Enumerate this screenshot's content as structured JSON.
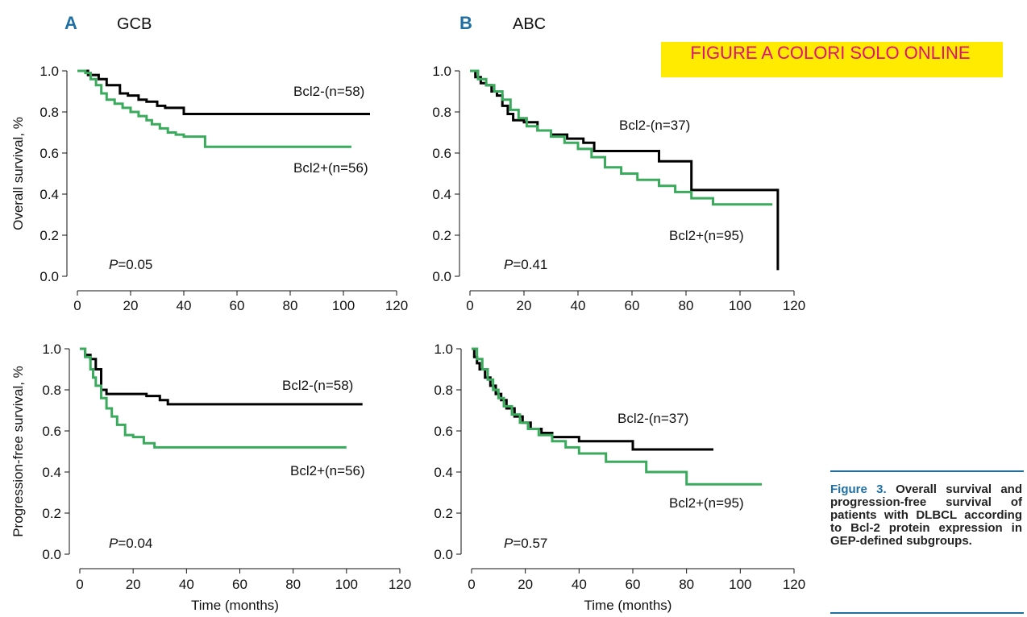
{
  "figure": {
    "label_a": "A",
    "label_b": "B",
    "group_a": "GCB",
    "group_b": "ABC",
    "banner": "FIGURE A COLORI SOLO ONLINE",
    "caption_lead": "Figure 3.",
    "caption_body": "Overall survival and progression-free survival of patients with DLBCL according to Bcl-2 protein expression in GEP-defined subgroups.",
    "colors": {
      "bcl2_neg": "#000000",
      "bcl2_pos": "#3aaa5c",
      "accent": "#1f6fa3",
      "banner_bg": "#ffeb00",
      "banner_text": "#e0117a"
    }
  },
  "chart_data": [
    {
      "type": "line",
      "panel": "A-top",
      "ylabel": "Overall survival, %",
      "xlabel": "",
      "xlim": [
        0,
        120
      ],
      "ylim": [
        0,
        1
      ],
      "xticks": [
        0,
        20,
        40,
        60,
        80,
        100,
        120
      ],
      "yticks": [
        0.0,
        0.2,
        0.4,
        0.6,
        0.8,
        1.0
      ],
      "grid": false,
      "pvalue_prefix": "P",
      "pvalue_rest": "=0.05",
      "series": [
        {
          "name": "Bcl2-(n=58)",
          "color": "#000000",
          "x": [
            0,
            4,
            8,
            11,
            16,
            19,
            23,
            26,
            30,
            33,
            40,
            110
          ],
          "y": [
            1.0,
            0.98,
            0.96,
            0.93,
            0.89,
            0.88,
            0.86,
            0.85,
            0.83,
            0.82,
            0.79,
            0.79
          ]
        },
        {
          "name": "Bcl2+(n=56)",
          "color": "#3aaa5c",
          "x": [
            0,
            3,
            5,
            7,
            9,
            11,
            14,
            17,
            20,
            23,
            26,
            28,
            31,
            34,
            37,
            40,
            48,
            103
          ],
          "y": [
            1.0,
            0.99,
            0.96,
            0.93,
            0.89,
            0.86,
            0.84,
            0.82,
            0.8,
            0.78,
            0.76,
            0.74,
            0.72,
            0.7,
            0.69,
            0.68,
            0.63,
            0.63
          ]
        }
      ]
    },
    {
      "type": "line",
      "panel": "B-top",
      "ylabel": "",
      "xlabel": "",
      "xlim": [
        0,
        120
      ],
      "ylim": [
        0,
        1
      ],
      "xticks": [
        0,
        20,
        40,
        60,
        80,
        100,
        120
      ],
      "yticks": [
        0.0,
        0.2,
        0.4,
        0.6,
        0.8,
        1.0
      ],
      "grid": false,
      "pvalue_prefix": "P",
      "pvalue_rest": "=0.41",
      "series": [
        {
          "name": "Bcl2-(n=37)",
          "color": "#000000",
          "x": [
            0,
            2,
            4,
            6,
            8,
            10,
            12,
            14,
            16,
            20,
            25,
            30,
            36,
            42,
            46,
            60,
            70,
            82,
            114,
            114
          ],
          "y": [
            1.0,
            0.97,
            0.94,
            0.93,
            0.9,
            0.88,
            0.83,
            0.79,
            0.76,
            0.75,
            0.71,
            0.69,
            0.67,
            0.65,
            0.61,
            0.61,
            0.56,
            0.42,
            0.42,
            0.03
          ]
        },
        {
          "name": "Bcl2+(n=95)",
          "color": "#3aaa5c",
          "x": [
            0,
            3,
            6,
            9,
            12,
            15,
            18,
            21,
            25,
            30,
            35,
            40,
            45,
            50,
            56,
            62,
            70,
            76,
            82,
            90,
            112
          ],
          "y": [
            1.0,
            0.96,
            0.93,
            0.9,
            0.86,
            0.81,
            0.77,
            0.73,
            0.71,
            0.68,
            0.65,
            0.62,
            0.58,
            0.53,
            0.5,
            0.47,
            0.44,
            0.41,
            0.38,
            0.35,
            0.35
          ]
        }
      ]
    },
    {
      "type": "line",
      "panel": "A-bottom",
      "ylabel": "Progression-free survival, %",
      "xlabel": "Time (months)",
      "xlim": [
        0,
        120
      ],
      "ylim": [
        0,
        1
      ],
      "xticks": [
        0,
        20,
        40,
        60,
        80,
        100,
        120
      ],
      "yticks": [
        0.0,
        0.2,
        0.4,
        0.6,
        0.8,
        1.0
      ],
      "grid": false,
      "pvalue_prefix": "P",
      "pvalue_rest": "=0.04",
      "series": [
        {
          "name": "Bcl2-(n=58)",
          "color": "#000000",
          "x": [
            0,
            2,
            4,
            6,
            8,
            10,
            25,
            30,
            33,
            106
          ],
          "y": [
            1.0,
            0.97,
            0.95,
            0.9,
            0.8,
            0.78,
            0.77,
            0.75,
            0.73,
            0.73
          ]
        },
        {
          "name": "Bcl2+(n=56)",
          "color": "#3aaa5c",
          "x": [
            0,
            2,
            4,
            5,
            6,
            8,
            10,
            12,
            14,
            17,
            20,
            24,
            28,
            100
          ],
          "y": [
            1.0,
            0.96,
            0.9,
            0.86,
            0.82,
            0.76,
            0.71,
            0.67,
            0.63,
            0.58,
            0.57,
            0.54,
            0.52,
            0.52
          ]
        }
      ]
    },
    {
      "type": "line",
      "panel": "B-bottom",
      "ylabel": "",
      "xlabel": "Time (months)",
      "xlim": [
        0,
        120
      ],
      "ylim": [
        0,
        1
      ],
      "xticks": [
        0,
        20,
        40,
        60,
        80,
        100,
        120
      ],
      "yticks": [
        0.0,
        0.2,
        0.4,
        0.6,
        0.8,
        1.0
      ],
      "grid": false,
      "pvalue_prefix": "P",
      "pvalue_rest": "=0.57",
      "series": [
        {
          "name": "Bcl2-(n=37)",
          "color": "#000000",
          "x": [
            0,
            1,
            2,
            3,
            5,
            7,
            9,
            11,
            13,
            16,
            19,
            22,
            26,
            30,
            40,
            60,
            90
          ],
          "y": [
            1.0,
            0.96,
            0.93,
            0.9,
            0.86,
            0.82,
            0.78,
            0.75,
            0.71,
            0.67,
            0.64,
            0.61,
            0.59,
            0.57,
            0.55,
            0.51,
            0.51
          ]
        },
        {
          "name": "Bcl2+(n=95)",
          "color": "#3aaa5c",
          "x": [
            0,
            2,
            4,
            6,
            8,
            10,
            12,
            15,
            18,
            21,
            25,
            30,
            35,
            40,
            50,
            65,
            80,
            108
          ],
          "y": [
            1.0,
            0.95,
            0.9,
            0.85,
            0.8,
            0.76,
            0.72,
            0.68,
            0.64,
            0.61,
            0.58,
            0.55,
            0.52,
            0.49,
            0.45,
            0.4,
            0.34,
            0.34
          ]
        }
      ]
    }
  ]
}
